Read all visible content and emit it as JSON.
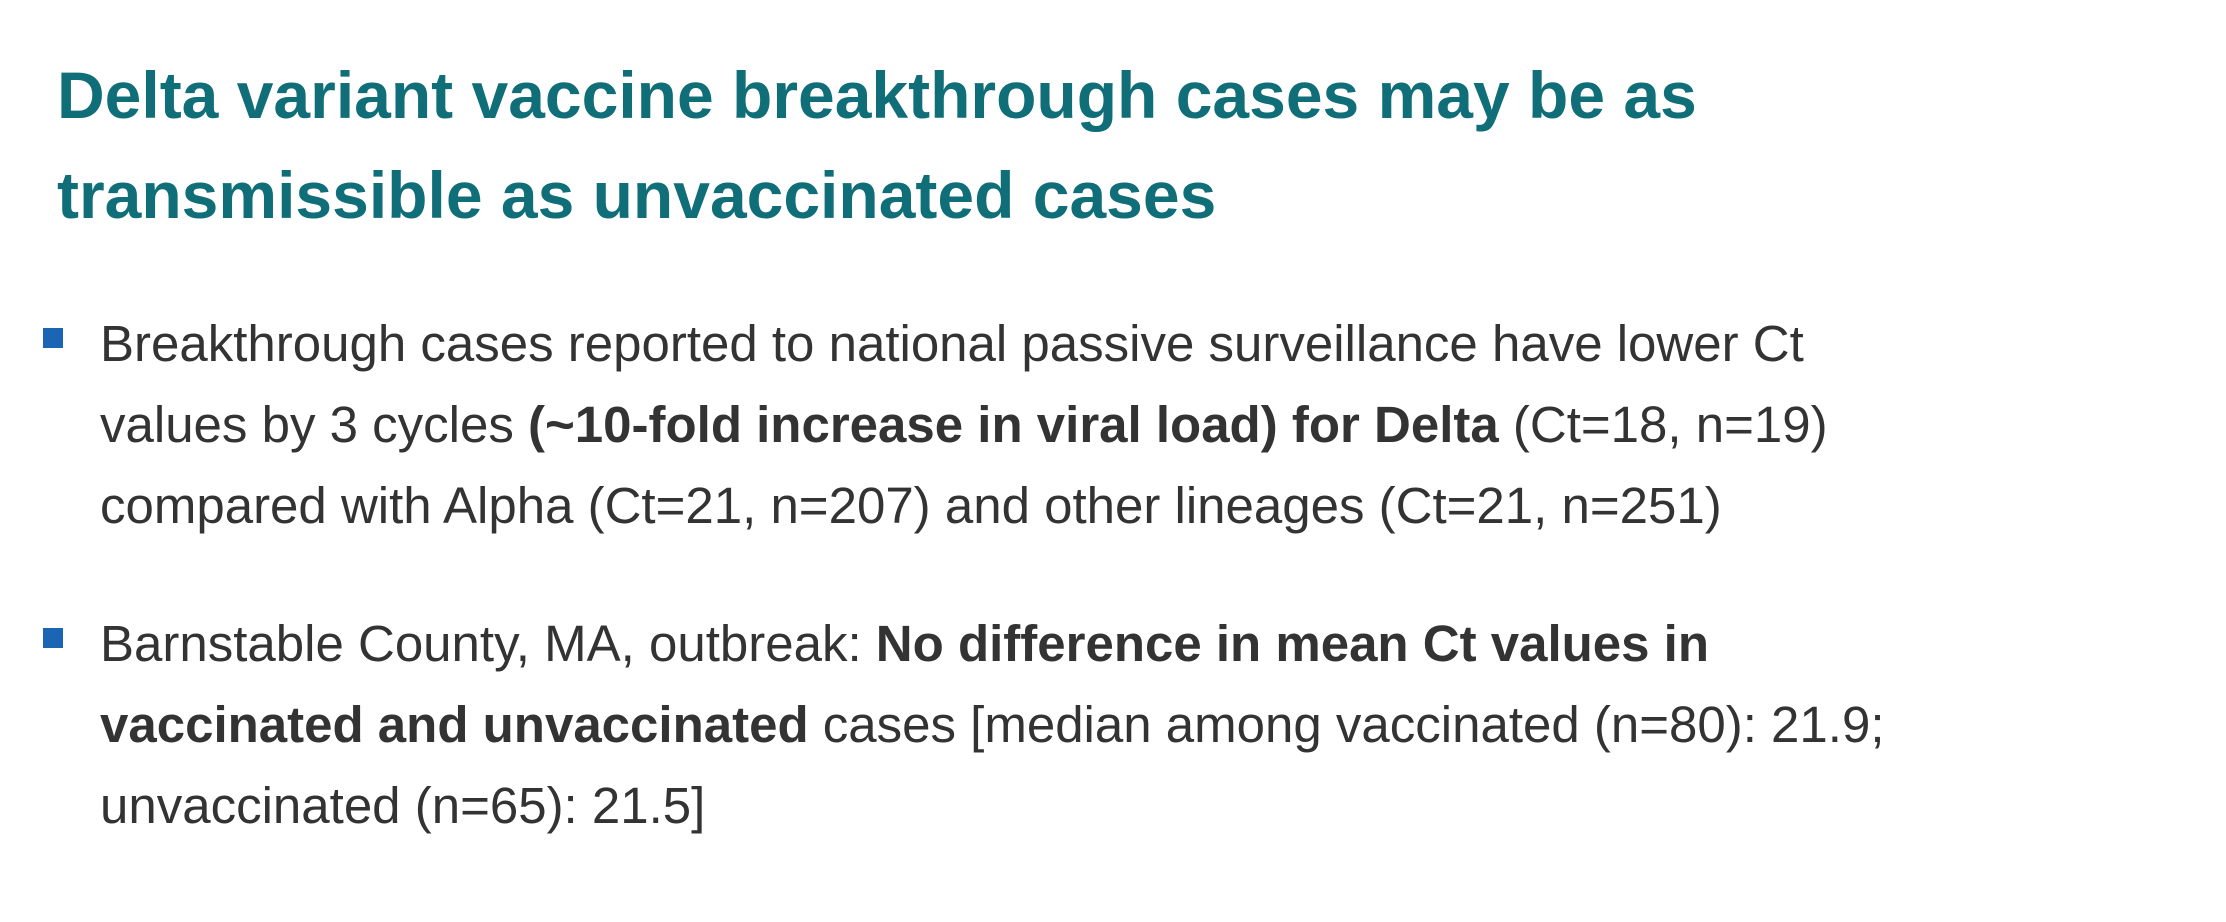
{
  "title": {
    "lines": [
      "Delta variant vaccine breakthrough cases may be as",
      "transmissible as unvaccinated cases"
    ]
  },
  "bullets": [
    {
      "lines": [
        [
          {
            "text": "Breakthrough cases reported to national passive surveillance have lower Ct",
            "bold": false
          }
        ],
        [
          {
            "text": "values by 3 cycles ",
            "bold": false
          },
          {
            "text": "(~10-fold increase in viral load) for Delta",
            "bold": true
          },
          {
            "text": " (Ct=18, n=19)",
            "bold": false
          }
        ],
        [
          {
            "text": "compared with Alpha (Ct=21, n=207) and other lineages (Ct=21, n=251)",
            "bold": false
          }
        ]
      ]
    },
    {
      "lines": [
        [
          {
            "text": "Barnstable County, MA, outbreak: ",
            "bold": false
          },
          {
            "text": "No difference in mean Ct values in",
            "bold": true
          }
        ],
        [
          {
            "text": "vaccinated and unvaccinated",
            "bold": true
          },
          {
            "text": " cases [median among vaccinated (n=80): 21.9;",
            "bold": false
          }
        ],
        [
          {
            "text": "unvaccinated (n=65): 21.5]",
            "bold": false
          }
        ]
      ]
    }
  ]
}
